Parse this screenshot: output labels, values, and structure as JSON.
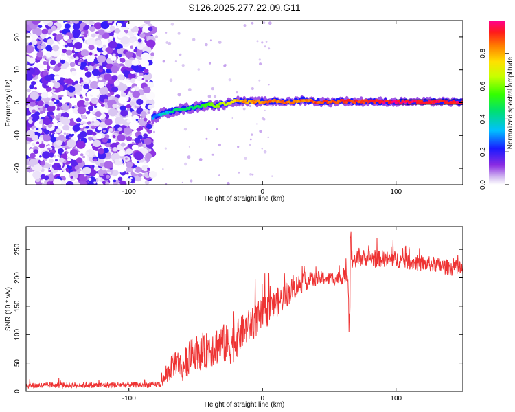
{
  "title": "S126.2025.277.22.09.G11",
  "chart_data": [
    {
      "type": "heatmap",
      "name": "spectrogram",
      "xlabel": "Height of straight line (km)",
      "ylabel": "Frequency (Hz)",
      "xlim": [
        -177,
        150
      ],
      "ylim": [
        -25,
        25
      ],
      "xticks": [
        -100,
        0,
        100
      ],
      "yticks": [
        -20,
        -10,
        0,
        10,
        20
      ],
      "noise_region_x": [
        -177,
        -82
      ],
      "signal_track": {
        "x": [
          -82,
          -75,
          -68,
          -60,
          -52,
          -45,
          -40,
          -35,
          -30,
          -25,
          -20,
          -10,
          0,
          10,
          20,
          30,
          40,
          50,
          60,
          70,
          80,
          90,
          100,
          110,
          120,
          130,
          140,
          150
        ],
        "freq": [
          -4.5,
          -3.5,
          -2.5,
          -2.0,
          -1.5,
          -1.0,
          -0.5,
          -1.0,
          -0.5,
          0.0,
          0.5,
          0.2,
          0.3,
          0.5,
          0.2,
          0.8,
          0.3,
          0.2,
          0.5,
          0.3,
          0.4,
          0.3,
          0.2,
          0.3,
          0.2,
          0.3,
          0.2,
          0.2
        ],
        "amplitude": [
          0.3,
          0.35,
          0.4,
          0.45,
          0.45,
          0.5,
          0.55,
          0.6,
          0.65,
          0.7,
          0.78,
          0.82,
          0.85,
          0.85,
          0.88,
          0.85,
          0.88,
          0.9,
          0.9,
          0.92,
          0.92,
          0.95,
          0.95,
          0.95,
          0.95,
          0.95,
          0.95,
          0.95
        ]
      },
      "colorbar": {
        "label": "Normalized spectral amplitude",
        "range": [
          0,
          1
        ],
        "ticks": [
          "0.0",
          "0.2",
          "0.4",
          "0.6",
          "0.8"
        ],
        "tick_values": [
          0,
          0.2,
          0.4,
          0.6,
          0.8
        ]
      }
    },
    {
      "type": "line",
      "name": "snr",
      "xlabel": "Height of straight line (km)",
      "ylabel": "SNR (10 * v/v)",
      "xlim": [
        -177,
        150
      ],
      "ylim": [
        0,
        290
      ],
      "xticks": [
        -100,
        0,
        100
      ],
      "yticks": [
        0,
        50,
        100,
        150,
        200,
        250
      ],
      "color": "#ee3333",
      "x": [
        -177,
        -150,
        -120,
        -100,
        -90,
        -80,
        -76,
        -70,
        -65,
        -60,
        -55,
        -50,
        -45,
        -40,
        -35,
        -30,
        -25,
        -20,
        -15,
        -10,
        -5,
        0,
        5,
        10,
        15,
        20,
        25,
        30,
        35,
        40,
        45,
        50,
        55,
        60,
        64,
        65,
        66,
        67,
        70,
        75,
        80,
        85,
        90,
        95,
        100,
        105,
        110,
        115,
        120,
        125,
        130,
        135,
        140,
        145,
        150
      ],
      "y": [
        10,
        11,
        11,
        12,
        11,
        12,
        13,
        35,
        55,
        40,
        60,
        70,
        65,
        75,
        80,
        85,
        80,
        90,
        105,
        115,
        125,
        135,
        145,
        155,
        165,
        175,
        185,
        192,
        195,
        198,
        200,
        198,
        200,
        200,
        205,
        115,
        235,
        230,
        232,
        235,
        235,
        232,
        234,
        232,
        232,
        230,
        228,
        226,
        225,
        224,
        223,
        220,
        218,
        215,
        212
      ],
      "noise_amp": [
        5,
        5,
        5,
        5,
        5,
        5,
        6,
        20,
        25,
        25,
        30,
        30,
        30,
        35,
        35,
        35,
        35,
        35,
        30,
        30,
        30,
        30,
        28,
        25,
        25,
        22,
        20,
        18,
        15,
        12,
        12,
        12,
        12,
        12,
        12,
        10,
        20,
        20,
        15,
        15,
        15,
        15,
        15,
        15,
        15,
        14,
        14,
        14,
        14,
        14,
        14,
        14,
        14,
        14,
        14
      ]
    }
  ]
}
